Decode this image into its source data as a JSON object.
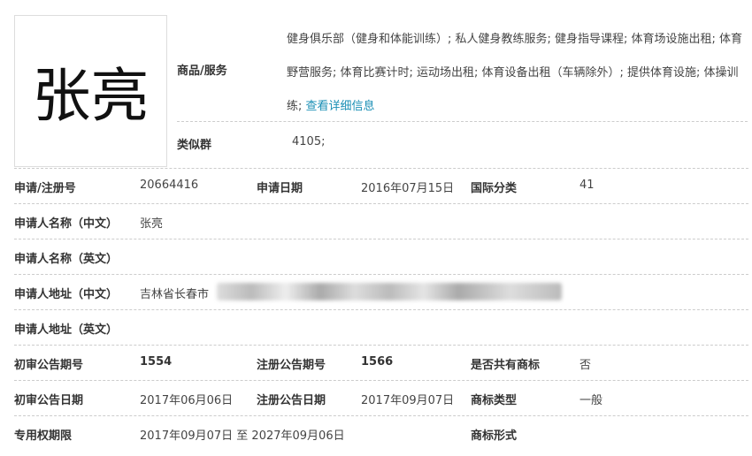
{
  "trademark_image_text": "张亮",
  "goods": {
    "label": "商品/服务",
    "text": "健身俱乐部（健身和体能训练）; 私人健身教练服务; 健身指导课程; 体育场设施出租; 体育野营服务; 体育比赛计时; 运动场出租; 体育设备出租（车辆除外）; 提供体育设施; 体操训练; ",
    "link": "查看详细信息"
  },
  "similar_group": {
    "label": "类似群",
    "value": "4105;"
  },
  "rows": [
    {
      "l1": "申请/注册号",
      "v1": "20664416",
      "l2": "申请日期",
      "v2": "2016年07月15日",
      "l3": "国际分类",
      "v3": "41"
    },
    {
      "l1": "申请人名称（中文）",
      "v1": "张亮"
    },
    {
      "l1": "申请人名称（英文）",
      "v1": ""
    },
    {
      "l1": "申请人地址（中文）",
      "v1": "吉林省长春市"
    },
    {
      "l1": "申请人地址（英文）",
      "v1": ""
    },
    {
      "l1": "初审公告期号",
      "v1": "1554",
      "l2": "注册公告期号",
      "v2": "1566",
      "l3": "是否共有商标",
      "v3": "否"
    },
    {
      "l1": "初审公告日期",
      "v1": "2017年06月06日",
      "l2": "注册公告日期",
      "v2": "2017年09月07日",
      "l3": "商标类型",
      "v3": "一般"
    },
    {
      "l1": "专用权期限",
      "v1": "2017年09月07日 至 2027年09月06日",
      "l3": "商标形式",
      "v3": ""
    }
  ]
}
